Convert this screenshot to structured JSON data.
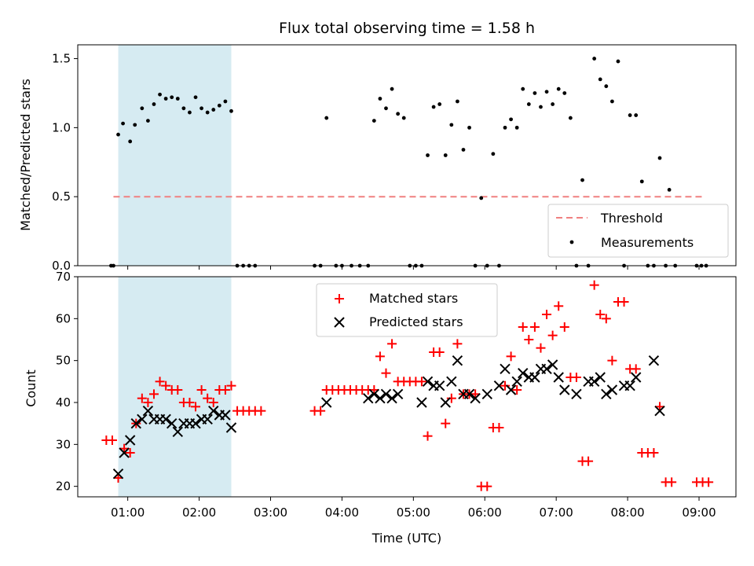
{
  "chart_data": [
    {
      "type": "scatter",
      "title": "Flux total observing time = 1.58 h",
      "xlabel": "",
      "ylabel": "Matched/Predicted stars",
      "ylim": [
        0,
        1.6
      ],
      "yticks": [
        0.0,
        0.5,
        1.0,
        1.5
      ],
      "ytick_labels": [
        "0.0",
        "0.5",
        "1.0",
        "1.5"
      ],
      "threshold": {
        "name": "Threshold",
        "value": 0.5,
        "color": "#f08080",
        "x_range": [
          "00:48",
          "09:04"
        ]
      },
      "shaded_interval": {
        "start": "00:52",
        "end": "02:27",
        "color": "#add8e6"
      },
      "legend_placement": "lower right",
      "series": [
        {
          "name": "Measurements",
          "color": "#000000",
          "points": [
            [
              "00:46",
              0
            ],
            [
              "00:48",
              0
            ],
            [
              "00:52",
              0.95
            ],
            [
              "00:56",
              1.03
            ],
            [
              "01:02",
              0.9
            ],
            [
              "01:06",
              1.02
            ],
            [
              "01:12",
              1.14
            ],
            [
              "01:17",
              1.05
            ],
            [
              "01:22",
              1.17
            ],
            [
              "01:27",
              1.24
            ],
            [
              "01:32",
              1.21
            ],
            [
              "01:37",
              1.22
            ],
            [
              "01:42",
              1.21
            ],
            [
              "01:47",
              1.14
            ],
            [
              "01:52",
              1.11
            ],
            [
              "01:57",
              1.22
            ],
            [
              "02:02",
              1.14
            ],
            [
              "02:07",
              1.11
            ],
            [
              "02:12",
              1.13
            ],
            [
              "02:17",
              1.16
            ],
            [
              "02:22",
              1.19
            ],
            [
              "02:27",
              1.12
            ],
            [
              "02:32",
              0
            ],
            [
              "02:37",
              0
            ],
            [
              "02:42",
              0
            ],
            [
              "02:47",
              0
            ],
            [
              "03:37",
              0
            ],
            [
              "03:42",
              0
            ],
            [
              "03:47",
              1.07
            ],
            [
              "03:55",
              0
            ],
            [
              "04:00",
              0
            ],
            [
              "04:08",
              0
            ],
            [
              "04:15",
              0
            ],
            [
              "04:22",
              0
            ],
            [
              "04:27",
              1.05
            ],
            [
              "04:32",
              1.21
            ],
            [
              "04:37",
              1.14
            ],
            [
              "04:42",
              1.28
            ],
            [
              "04:47",
              1.1
            ],
            [
              "04:52",
              1.07
            ],
            [
              "04:57",
              0
            ],
            [
              "05:02",
              0
            ],
            [
              "05:07",
              0
            ],
            [
              "05:12",
              0.8
            ],
            [
              "05:17",
              1.15
            ],
            [
              "05:22",
              1.17
            ],
            [
              "05:27",
              0.8
            ],
            [
              "05:32",
              1.02
            ],
            [
              "05:37",
              1.19
            ],
            [
              "05:42",
              0.84
            ],
            [
              "05:47",
              1.0
            ],
            [
              "05:52",
              0
            ],
            [
              "05:57",
              0.49
            ],
            [
              "06:02",
              0
            ],
            [
              "06:07",
              0.81
            ],
            [
              "06:12",
              0
            ],
            [
              "06:17",
              1.0
            ],
            [
              "06:22",
              1.06
            ],
            [
              "06:27",
              1.0
            ],
            [
              "06:32",
              1.28
            ],
            [
              "06:37",
              1.17
            ],
            [
              "06:42",
              1.25
            ],
            [
              "06:47",
              1.15
            ],
            [
              "06:52",
              1.26
            ],
            [
              "06:57",
              1.17
            ],
            [
              "07:02",
              1.28
            ],
            [
              "07:07",
              1.25
            ],
            [
              "07:12",
              1.07
            ],
            [
              "07:17",
              0
            ],
            [
              "07:22",
              0.62
            ],
            [
              "07:27",
              0
            ],
            [
              "07:32",
              1.5
            ],
            [
              "07:37",
              1.35
            ],
            [
              "07:42",
              1.3
            ],
            [
              "07:47",
              1.19
            ],
            [
              "07:52",
              1.48
            ],
            [
              "07:57",
              0
            ],
            [
              "08:02",
              1.09
            ],
            [
              "08:07",
              1.09
            ],
            [
              "08:12",
              0.61
            ],
            [
              "08:17",
              0
            ],
            [
              "08:22",
              0
            ],
            [
              "08:27",
              0.78
            ],
            [
              "08:32",
              0
            ],
            [
              "08:35",
              0.55
            ],
            [
              "08:40",
              0
            ],
            [
              "08:58",
              0
            ],
            [
              "09:02",
              0
            ],
            [
              "09:06",
              0
            ]
          ]
        }
      ]
    },
    {
      "type": "scatter",
      "title": "",
      "xlabel": "Time (UTC)",
      "ylabel": "Count",
      "ylim": [
        17.5,
        70
      ],
      "yticks": [
        20,
        30,
        40,
        50,
        60,
        70
      ],
      "ytick_labels": [
        "20",
        "30",
        "40",
        "50",
        "60",
        "70"
      ],
      "xlim": [
        "00:18",
        "09:31"
      ],
      "xticks": [
        "01:00",
        "02:00",
        "03:00",
        "04:00",
        "05:00",
        "06:00",
        "07:00",
        "08:00",
        "09:00"
      ],
      "xtick_labels": [
        "01:00",
        "02:00",
        "03:00",
        "04:00",
        "05:00",
        "06:00",
        "07:00",
        "08:00",
        "09:00"
      ],
      "shaded_interval": {
        "start": "00:52",
        "end": "02:27",
        "color": "#add8e6"
      },
      "legend_placement": "upper center",
      "series": [
        {
          "name": "Matched stars",
          "marker": "+",
          "color": "#ff0000",
          "points": [
            [
              "00:42",
              31
            ],
            [
              "00:47",
              31
            ],
            [
              "00:52",
              22
            ],
            [
              "00:57",
              29
            ],
            [
              "01:02",
              28
            ],
            [
              "01:07",
              35
            ],
            [
              "01:12",
              41
            ],
            [
              "01:17",
              40
            ],
            [
              "01:22",
              42
            ],
            [
              "01:27",
              45
            ],
            [
              "01:32",
              44
            ],
            [
              "01:37",
              43
            ],
            [
              "01:42",
              43
            ],
            [
              "01:47",
              40
            ],
            [
              "01:52",
              40
            ],
            [
              "01:57",
              39
            ],
            [
              "02:02",
              43
            ],
            [
              "02:07",
              41
            ],
            [
              "02:12",
              40
            ],
            [
              "02:17",
              43
            ],
            [
              "02:22",
              43
            ],
            [
              "02:27",
              44
            ],
            [
              "02:32",
              38
            ],
            [
              "02:37",
              38
            ],
            [
              "02:42",
              38
            ],
            [
              "02:47",
              38
            ],
            [
              "02:52",
              38
            ],
            [
              "03:37",
              38
            ],
            [
              "03:42",
              38
            ],
            [
              "03:47",
              43
            ],
            [
              "03:52",
              43
            ],
            [
              "03:57",
              43
            ],
            [
              "04:02",
              43
            ],
            [
              "04:07",
              43
            ],
            [
              "04:12",
              43
            ],
            [
              "04:17",
              43
            ],
            [
              "04:22",
              43
            ],
            [
              "04:27",
              43
            ],
            [
              "04:32",
              51
            ],
            [
              "04:37",
              47
            ],
            [
              "04:42",
              54
            ],
            [
              "04:47",
              45
            ],
            [
              "04:52",
              45
            ],
            [
              "04:57",
              45
            ],
            [
              "05:02",
              45
            ],
            [
              "05:07",
              45
            ],
            [
              "05:12",
              32
            ],
            [
              "05:17",
              52
            ],
            [
              "05:22",
              52
            ],
            [
              "05:27",
              35
            ],
            [
              "05:32",
              41
            ],
            [
              "05:37",
              54
            ],
            [
              "05:42",
              42
            ],
            [
              "05:47",
              42
            ],
            [
              "05:52",
              42
            ],
            [
              "05:57",
              20
            ],
            [
              "06:02",
              20
            ],
            [
              "06:07",
              34
            ],
            [
              "06:12",
              34
            ],
            [
              "06:17",
              44
            ],
            [
              "06:22",
              51
            ],
            [
              "06:27",
              43
            ],
            [
              "06:32",
              58
            ],
            [
              "06:37",
              55
            ],
            [
              "06:42",
              58
            ],
            [
              "06:47",
              53
            ],
            [
              "06:52",
              61
            ],
            [
              "06:57",
              56
            ],
            [
              "07:02",
              63
            ],
            [
              "07:07",
              58
            ],
            [
              "07:12",
              46
            ],
            [
              "07:17",
              46
            ],
            [
              "07:22",
              26
            ],
            [
              "07:27",
              26
            ],
            [
              "07:32",
              68
            ],
            [
              "07:37",
              61
            ],
            [
              "07:42",
              60
            ],
            [
              "07:47",
              50
            ],
            [
              "07:52",
              64
            ],
            [
              "07:57",
              64
            ],
            [
              "08:02",
              48
            ],
            [
              "08:07",
              48
            ],
            [
              "08:12",
              28
            ],
            [
              "08:17",
              28
            ],
            [
              "08:22",
              28
            ],
            [
              "08:27",
              39
            ],
            [
              "08:32",
              21
            ],
            [
              "08:37",
              21
            ],
            [
              "08:58",
              21
            ],
            [
              "09:03",
              21
            ],
            [
              "09:08",
              21
            ]
          ]
        },
        {
          "name": "Predicted stars",
          "marker": "x",
          "color": "#000000",
          "points": [
            [
              "00:52",
              23
            ],
            [
              "00:57",
              28
            ],
            [
              "01:02",
              31
            ],
            [
              "01:07",
              35
            ],
            [
              "01:12",
              36
            ],
            [
              "01:17",
              38
            ],
            [
              "01:22",
              36
            ],
            [
              "01:27",
              36
            ],
            [
              "01:32",
              36
            ],
            [
              "01:37",
              35
            ],
            [
              "01:42",
              33
            ],
            [
              "01:47",
              35
            ],
            [
              "01:52",
              35
            ],
            [
              "01:57",
              35
            ],
            [
              "02:02",
              36
            ],
            [
              "02:07",
              36
            ],
            [
              "02:12",
              38
            ],
            [
              "02:17",
              37
            ],
            [
              "02:22",
              37
            ],
            [
              "02:27",
              34
            ],
            [
              "03:47",
              40
            ],
            [
              "04:22",
              41
            ],
            [
              "04:27",
              42
            ],
            [
              "04:32",
              41
            ],
            [
              "04:37",
              42
            ],
            [
              "04:42",
              41
            ],
            [
              "04:47",
              42
            ],
            [
              "05:07",
              40
            ],
            [
              "05:12",
              45
            ],
            [
              "05:17",
              44
            ],
            [
              "05:22",
              44
            ],
            [
              "05:27",
              40
            ],
            [
              "05:32",
              45
            ],
            [
              "05:37",
              50
            ],
            [
              "05:42",
              42
            ],
            [
              "05:47",
              42
            ],
            [
              "05:52",
              41
            ],
            [
              "06:02",
              42
            ],
            [
              "06:12",
              44
            ],
            [
              "06:17",
              48
            ],
            [
              "06:22",
              43
            ],
            [
              "06:27",
              45
            ],
            [
              "06:32",
              47
            ],
            [
              "06:37",
              46
            ],
            [
              "06:42",
              46
            ],
            [
              "06:47",
              48
            ],
            [
              "06:52",
              48
            ],
            [
              "06:57",
              49
            ],
            [
              "07:02",
              46
            ],
            [
              "07:07",
              43
            ],
            [
              "07:17",
              42
            ],
            [
              "07:27",
              45
            ],
            [
              "07:32",
              45
            ],
            [
              "07:37",
              46
            ],
            [
              "07:42",
              42
            ],
            [
              "07:47",
              43
            ],
            [
              "07:57",
              44
            ],
            [
              "08:02",
              44
            ],
            [
              "08:07",
              46
            ],
            [
              "08:22",
              50
            ],
            [
              "08:27",
              38
            ]
          ]
        }
      ]
    }
  ]
}
